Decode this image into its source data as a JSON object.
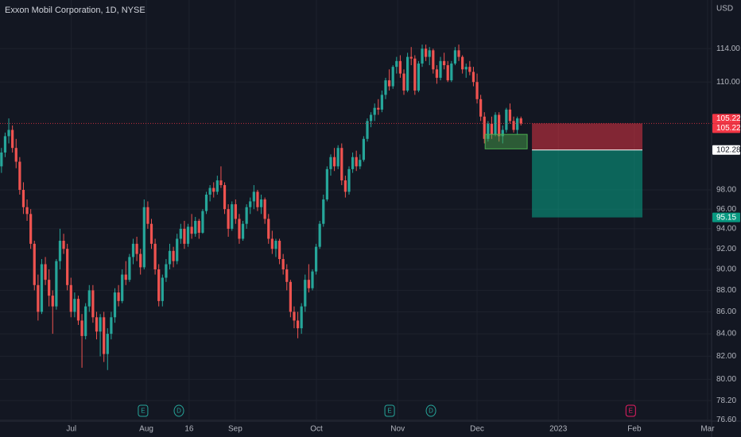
{
  "chart_data": {
    "type": "candlestick",
    "title": "Exxon Mobil Corporation, 1D, NYSE",
    "currency": "USD",
    "log_scale": true,
    "grid": true,
    "up_color": "#26a69a",
    "down_color": "#ef5350",
    "ylim": [
      76.5,
      120.1
    ],
    "yticks": [
      {
        "value": 114,
        "label": "114.00"
      },
      {
        "value": 110,
        "label": "110.00"
      },
      {
        "value": 98,
        "label": "98.00"
      },
      {
        "value": 96,
        "label": "96.00"
      },
      {
        "value": 94,
        "label": "94.00"
      },
      {
        "value": 92,
        "label": "92.00"
      },
      {
        "value": 90,
        "label": "90.00"
      },
      {
        "value": 88,
        "label": "88.00"
      },
      {
        "value": 86,
        "label": "86.00"
      },
      {
        "value": 84,
        "label": "84.00"
      },
      {
        "value": 82,
        "label": "82.00"
      },
      {
        "value": 80,
        "label": "80.00"
      },
      {
        "value": 78.2,
        "label": "78.20"
      },
      {
        "value": 76.6,
        "label": "76.60"
      }
    ],
    "xlim": [
      -0.4,
      194.1
    ],
    "xticks": [
      {
        "value": 19.1,
        "label": "Jul"
      },
      {
        "value": 39.6,
        "label": "Aug"
      },
      {
        "value": 51.3,
        "label": "16"
      },
      {
        "value": 63.9,
        "label": "Sep"
      },
      {
        "value": 86.1,
        "label": "Oct"
      },
      {
        "value": 108.3,
        "label": "Nov"
      },
      {
        "value": 130,
        "label": "Dec"
      },
      {
        "value": 152.2,
        "label": "2023"
      },
      {
        "value": 173,
        "label": "Feb"
      },
      {
        "value": 193,
        "label": "Mar"
      }
    ],
    "ohlc": [
      [
        100.5,
        102.5,
        99.8,
        102.0
      ],
      [
        102.0,
        104.2,
        101.5,
        103.8
      ],
      [
        103.8,
        105.8,
        103.0,
        104.5
      ],
      [
        104.5,
        105.0,
        102.0,
        102.5
      ],
      [
        102.5,
        103.5,
        100.3,
        101.0
      ],
      [
        101.0,
        101.5,
        97.5,
        98.0
      ],
      [
        98.0,
        98.8,
        95.5,
        96.2
      ],
      [
        96.2,
        97.0,
        94.8,
        95.5
      ],
      [
        95.5,
        96.0,
        92.0,
        92.5
      ],
      [
        92.5,
        92.8,
        88.0,
        88.5
      ],
      [
        88.5,
        89.5,
        85.2,
        86.0
      ],
      [
        86.0,
        91.0,
        85.8,
        90.5
      ],
      [
        90.5,
        91.2,
        88.5,
        89.0
      ],
      [
        89.0,
        90.0,
        86.5,
        87.5
      ],
      [
        87.5,
        88.0,
        84.0,
        86.5
      ],
      [
        86.5,
        91.0,
        86.2,
        90.8
      ],
      [
        90.8,
        94.0,
        90.0,
        92.8
      ],
      [
        92.8,
        93.5,
        91.5,
        92.0
      ],
      [
        92.0,
        92.5,
        88.0,
        88.5
      ],
      [
        88.5,
        89.2,
        85.5,
        86.0
      ],
      [
        86.0,
        87.8,
        85.5,
        87.2
      ],
      [
        87.2,
        87.5,
        84.8,
        85.2
      ],
      [
        85.2,
        85.8,
        81.0,
        83.8
      ],
      [
        83.8,
        86.8,
        83.5,
        86.5
      ],
      [
        86.5,
        88.5,
        86.0,
        88.0
      ],
      [
        88.0,
        88.5,
        85.0,
        85.5
      ],
      [
        85.5,
        86.0,
        83.5,
        84.2
      ],
      [
        84.2,
        85.8,
        82.0,
        85.5
      ],
      [
        85.5,
        86.0,
        81.5,
        82.2
      ],
      [
        82.2,
        84.5,
        80.8,
        84.0
      ],
      [
        84.0,
        86.0,
        83.5,
        85.5
      ],
      [
        85.5,
        88.2,
        85.0,
        87.8
      ],
      [
        87.8,
        88.5,
        86.5,
        87.0
      ],
      [
        87.0,
        90.0,
        86.8,
        89.5
      ],
      [
        89.5,
        90.8,
        88.5,
        89.0
      ],
      [
        89.0,
        91.5,
        88.8,
        91.2
      ],
      [
        91.2,
        93.0,
        90.5,
        92.5
      ],
      [
        92.5,
        93.2,
        90.8,
        91.5
      ],
      [
        91.5,
        92.0,
        89.5,
        90.2
      ],
      [
        90.2,
        97.0,
        90.0,
        96.2
      ],
      [
        96.2,
        96.8,
        94.0,
        94.5
      ],
      [
        94.5,
        95.0,
        92.0,
        92.5
      ],
      [
        92.5,
        93.0,
        89.5,
        90.0
      ],
      [
        90.0,
        90.5,
        86.5,
        87.0
      ],
      [
        87.0,
        89.5,
        86.5,
        89.2
      ],
      [
        89.2,
        91.0,
        88.8,
        90.5
      ],
      [
        90.5,
        92.5,
        90.0,
        91.8
      ],
      [
        91.8,
        92.2,
        90.2,
        90.8
      ],
      [
        90.8,
        93.5,
        90.5,
        93.0
      ],
      [
        93.0,
        94.5,
        92.5,
        94.0
      ],
      [
        94.0,
        94.8,
        92.0,
        92.5
      ],
      [
        92.5,
        94.5,
        92.2,
        94.2
      ],
      [
        94.2,
        95.5,
        93.0,
        93.5
      ],
      [
        93.5,
        95.2,
        93.2,
        94.8
      ],
      [
        94.8,
        95.0,
        93.0,
        93.6
      ],
      [
        93.6,
        96.0,
        93.5,
        95.8
      ],
      [
        95.8,
        97.8,
        95.5,
        97.5
      ],
      [
        97.5,
        98.5,
        96.8,
        98.2
      ],
      [
        98.2,
        98.8,
        97.2,
        97.8
      ],
      [
        97.8,
        99.5,
        97.5,
        99.0
      ],
      [
        99.0,
        100.5,
        98.2,
        98.5
      ],
      [
        98.5,
        98.8,
        95.5,
        96.0
      ],
      [
        96.0,
        96.5,
        93.2,
        94.0
      ],
      [
        94.0,
        96.8,
        93.8,
        96.5
      ],
      [
        96.5,
        97.0,
        94.5,
        95.0
      ],
      [
        95.0,
        95.5,
        92.5,
        93.0
      ],
      [
        93.0,
        94.8,
        92.8,
        94.5
      ],
      [
        94.5,
        96.5,
        94.0,
        96.2
      ],
      [
        96.2,
        97.2,
        95.5,
        96.8
      ],
      [
        96.8,
        98.5,
        96.0,
        97.8
      ],
      [
        97.8,
        98.0,
        95.8,
        96.2
      ],
      [
        96.2,
        97.5,
        95.5,
        97.0
      ],
      [
        97.0,
        97.2,
        94.5,
        95.0
      ],
      [
        95.0,
        95.5,
        92.5,
        93.0
      ],
      [
        93.0,
        93.8,
        91.5,
        92.0
      ],
      [
        92.0,
        93.0,
        91.2,
        92.8
      ],
      [
        92.8,
        93.0,
        90.5,
        91.0
      ],
      [
        91.0,
        91.5,
        89.5,
        90.0
      ],
      [
        90.0,
        90.5,
        88.0,
        88.8
      ],
      [
        88.8,
        89.0,
        85.5,
        86.0
      ],
      [
        86.0,
        86.5,
        84.5,
        85.2
      ],
      [
        85.2,
        86.0,
        83.6,
        84.5
      ],
      [
        84.5,
        86.8,
        84.0,
        86.5
      ],
      [
        86.5,
        89.5,
        86.0,
        89.0
      ],
      [
        89.0,
        90.5,
        87.8,
        88.2
      ],
      [
        88.2,
        90.0,
        88.0,
        89.8
      ],
      [
        89.8,
        92.5,
        89.5,
        92.2
      ],
      [
        92.2,
        94.8,
        92.0,
        94.5
      ],
      [
        94.5,
        97.5,
        94.2,
        97.0
      ],
      [
        97.0,
        100.5,
        96.8,
        100.2
      ],
      [
        100.2,
        101.8,
        99.5,
        101.5
      ],
      [
        101.5,
        102.5,
        100.0,
        100.5
      ],
      [
        100.5,
        102.8,
        100.2,
        102.5
      ],
      [
        102.5,
        103.0,
        98.5,
        99.0
      ],
      [
        99.0,
        99.5,
        97.2,
        97.8
      ],
      [
        97.8,
        100.5,
        97.5,
        100.2
      ],
      [
        100.2,
        102.0,
        99.8,
        101.5
      ],
      [
        101.5,
        102.2,
        100.0,
        100.5
      ],
      [
        100.5,
        101.8,
        100.2,
        101.2
      ],
      [
        101.2,
        103.8,
        101.0,
        103.5
      ],
      [
        103.5,
        105.8,
        103.2,
        105.5
      ],
      [
        105.5,
        106.5,
        104.8,
        106.2
      ],
      [
        106.2,
        107.5,
        105.5,
        107.0
      ],
      [
        107.0,
        108.0,
        106.2,
        106.8
      ],
      [
        106.8,
        109.0,
        106.5,
        108.5
      ],
      [
        108.5,
        110.5,
        108.0,
        110.2
      ],
      [
        110.2,
        111.5,
        109.0,
        109.5
      ],
      [
        109.5,
        112.0,
        109.2,
        111.8
      ],
      [
        111.8,
        113.0,
        111.0,
        112.5
      ],
      [
        112.5,
        113.2,
        110.5,
        111.0
      ],
      [
        111.0,
        111.5,
        108.5,
        109.0
      ],
      [
        109.0,
        113.5,
        108.8,
        113.0
      ],
      [
        113.0,
        114.2,
        112.0,
        112.8
      ],
      [
        112.8,
        113.2,
        108.5,
        109.0
      ],
      [
        109.0,
        112.5,
        108.8,
        112.2
      ],
      [
        112.2,
        114.5,
        111.8,
        114.0
      ],
      [
        114.0,
        114.5,
        112.5,
        113.0
      ],
      [
        113.0,
        114.2,
        112.0,
        113.8
      ],
      [
        113.8,
        114.0,
        111.0,
        111.5
      ],
      [
        111.5,
        112.0,
        109.8,
        110.5
      ],
      [
        110.5,
        113.0,
        110.2,
        112.5
      ],
      [
        112.5,
        113.5,
        111.5,
        112.0
      ],
      [
        112.0,
        112.5,
        110.0,
        110.2
      ],
      [
        110.2,
        112.5,
        110.0,
        112.2
      ],
      [
        112.2,
        114.2,
        112.0,
        113.8
      ],
      [
        113.8,
        114.5,
        112.5,
        113.0
      ],
      [
        113.0,
        113.2,
        111.0,
        111.5
      ],
      [
        111.5,
        112.2,
        110.5,
        111.8
      ],
      [
        111.8,
        112.5,
        110.8,
        111.2
      ],
      [
        111.2,
        111.8,
        109.5,
        110.0
      ],
      [
        110.0,
        111.0,
        107.5,
        108.0
      ],
      [
        108.0,
        108.5,
        105.5,
        106.0
      ],
      [
        106.0,
        106.5,
        103.0,
        103.5
      ],
      [
        103.5,
        105.5,
        103.2,
        105.2
      ],
      [
        105.2,
        106.0,
        103.5,
        104.0
      ],
      [
        104.0,
        106.5,
        103.8,
        106.2
      ],
      [
        106.2,
        106.5,
        103.2,
        103.8
      ],
      [
        103.8,
        105.0,
        103.0,
        104.5
      ],
      [
        104.5,
        107.0,
        104.2,
        106.8
      ],
      [
        106.8,
        107.5,
        105.2,
        105.5
      ],
      [
        105.5,
        106.0,
        104.2,
        104.5
      ],
      [
        104.5,
        106.0,
        104.0,
        105.8
      ],
      [
        105.8,
        106.0,
        105.0,
        105.22
      ]
    ],
    "current_price": {
      "value": 105.22,
      "color": "#f23645"
    },
    "position": {
      "stop": 105.22,
      "entry": 102.28,
      "target": 95.15,
      "start": 145,
      "end": 175.2,
      "stop_color": "#f23645",
      "target_color": "#089981",
      "entry_color": "#ffffff"
    },
    "zone": {
      "top": 104.0,
      "bottom": 102.4,
      "start": 132.2,
      "end": 143.7,
      "color": "#4caf50"
    },
    "events": [
      {
        "label": "E",
        "x": 38.7,
        "color": "#26a69a"
      },
      {
        "label": "D",
        "x": 48.5,
        "color": "#26a69a"
      },
      {
        "label": "E",
        "x": 106.1,
        "color": "#26a69a"
      },
      {
        "label": "D",
        "x": 117.4,
        "color": "#26a69a"
      },
      {
        "label": "E",
        "x": 172,
        "color": "#e91e63"
      }
    ]
  }
}
